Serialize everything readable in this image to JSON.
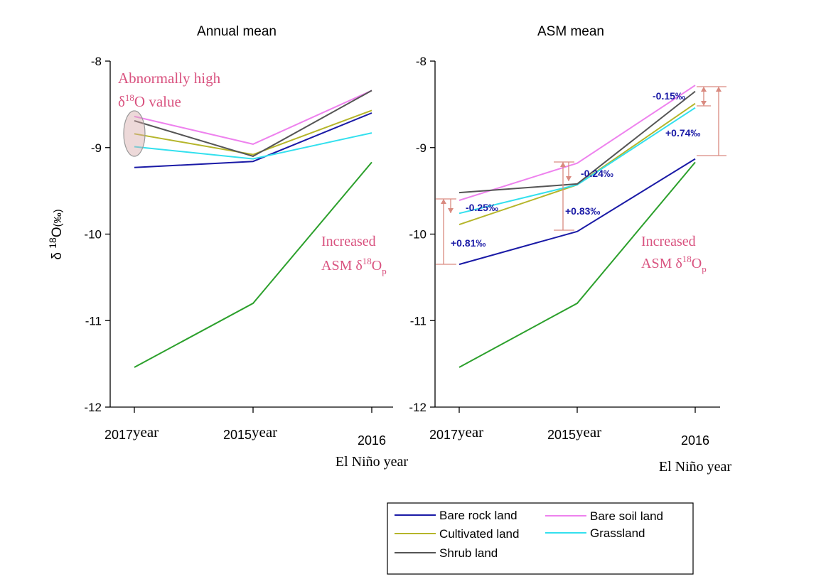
{
  "chart_data": [
    {
      "type": "line",
      "title": "Annual mean",
      "ylabel": "δ 18O(‰)",
      "ylim": [
        -12,
        -8
      ],
      "yticks": [
        "-8",
        "-9",
        "-10",
        "-11",
        "-12"
      ],
      "categories": [
        "2017",
        "2015",
        "2016"
      ],
      "category_suffix": [
        "year",
        "year",
        "year"
      ],
      "category_sublabel": [
        "",
        "",
        "El Niño"
      ],
      "series": [
        {
          "name": "Bare rock land",
          "color": "#1a1aa6",
          "values": [
            -9.23,
            -9.16,
            -8.6
          ]
        },
        {
          "name": "Bare soil land",
          "color": "#ee82ee",
          "values": [
            -8.64,
            -8.96,
            -8.34
          ]
        },
        {
          "name": "Cultivated land",
          "color": "#b5b52a",
          "values": [
            -8.84,
            -9.08,
            -8.57
          ]
        },
        {
          "name": "Grassland",
          "color": "#33e0ee",
          "values": [
            -8.99,
            -9.13,
            -8.83
          ]
        },
        {
          "name": "Shrub land",
          "color": "#555555",
          "values": [
            -8.69,
            -9.1,
            -8.34
          ]
        },
        {
          "color": "#2ca02c",
          "values": [
            -11.54,
            -10.8,
            -9.17
          ]
        }
      ],
      "annotations": {
        "abnormal_line1": "Abnormally high",
        "abnormal_line2": "δ18O value",
        "increased_line1": "Increased",
        "increased_line2": "ASM δ18Op"
      }
    },
    {
      "type": "line",
      "title": "ASM mean",
      "ylim": [
        -12,
        -8
      ],
      "yticks": [
        "-8",
        "-9",
        "-10",
        "-11",
        "-12"
      ],
      "categories": [
        "2017",
        "2015",
        "2016"
      ],
      "category_suffix": [
        "year",
        "year",
        "year"
      ],
      "category_sublabel": [
        "",
        "",
        "El Niño"
      ],
      "series": [
        {
          "name": "Bare rock land",
          "color": "#1a1aa6",
          "values": [
            -10.35,
            -9.97,
            -9.13
          ]
        },
        {
          "name": "Bare soil land",
          "color": "#ee82ee",
          "values": [
            -9.61,
            -9.18,
            -8.28
          ]
        },
        {
          "name": "Cultivated land",
          "color": "#b5b52a",
          "values": [
            -9.89,
            -9.43,
            -8.49
          ]
        },
        {
          "name": "Grassland",
          "color": "#33e0ee",
          "values": [
            -9.76,
            -9.43,
            -8.54
          ]
        },
        {
          "name": "Shrub land",
          "color": "#555555",
          "values": [
            -9.52,
            -9.42,
            -8.35
          ]
        },
        {
          "color": "#2ca02c",
          "values": [
            -11.54,
            -10.8,
            -9.17
          ]
        }
      ],
      "annotations": {
        "diff_2017_neg": "-0.25‰",
        "diff_2017_pos": "+0.81‰",
        "diff_2015_neg": "-0.24‰",
        "diff_2015_pos": "+0.83‰",
        "diff_2016_neg": "-0.15‰",
        "diff_2016_pos": "+0.74‰",
        "increased_line1": "Increased",
        "increased_line2": "ASM δ18Op"
      }
    }
  ],
  "legend": {
    "placement": "bottom-right",
    "items": [
      {
        "label": "Bare rock land",
        "color": "#1a1aa6"
      },
      {
        "label": "Bare soil land",
        "color": "#ee82ee"
      },
      {
        "label": "Cultivated land",
        "color": "#b5b52a"
      },
      {
        "label": "Grassland",
        "color": "#33e0ee"
      },
      {
        "label": "Shrub land",
        "color": "#555555"
      }
    ]
  },
  "colors": {
    "annotation_pink": "#d9527f",
    "bracket": "#d98a80",
    "diff_text": "#1a1aa6"
  }
}
